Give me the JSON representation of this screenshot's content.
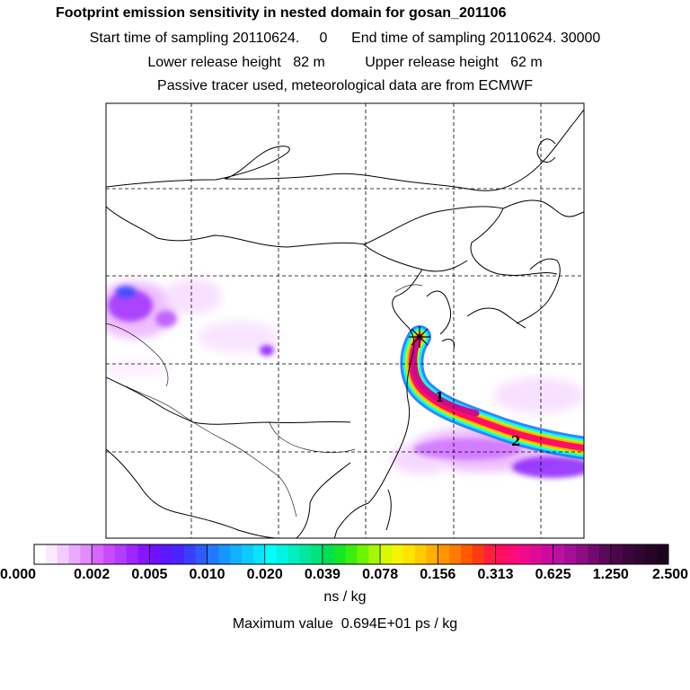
{
  "title": "Footprint emission sensitivity in nested domain for gosan_201106",
  "sampling_line": "Start time of sampling 20110624.     0      End time of sampling 20110624. 30000",
  "release_line": "Lower release height   82 m          Upper release height   62 m",
  "tracer_line": "Passive tracer used, meteorological data are from ECMWF",
  "map": {
    "release_site": "gosan",
    "track_labels": [
      "1",
      "2"
    ]
  },
  "colorbar": {
    "tick_labels": [
      "0.000",
      "0.002",
      "0.005",
      "0.010",
      "0.020",
      "0.039",
      "0.078",
      "0.156",
      "0.313",
      "0.625",
      "1.250",
      "2.500"
    ],
    "colors": [
      [
        "#ffffff",
        "#fae9ff",
        "#f3ccff",
        "#ebaaff",
        "#e38cff"
      ],
      [
        "#d766ff",
        "#c84bff",
        "#b43cff",
        "#9f26ff",
        "#8b14ff"
      ],
      [
        "#7010ff",
        "#5b17ff",
        "#4a25ff",
        "#3b3dff",
        "#2d5bff"
      ],
      [
        "#2079ff",
        "#1796ff",
        "#12b1ff",
        "#0ecaff",
        "#0ae3ff"
      ],
      [
        "#00ffff",
        "#00f5e0",
        "#00eec0",
        "#00e8a0",
        "#00e47c"
      ],
      [
        "#00e050",
        "#14e628",
        "#3aee12",
        "#6ef400",
        "#a6f800"
      ],
      [
        "#d8fa00",
        "#f5f500",
        "#ffe300",
        "#ffcb00",
        "#ffb000"
      ],
      [
        "#ff9500",
        "#ff7a00",
        "#ff5a00",
        "#ff3a14",
        "#ff1e3c"
      ],
      [
        "#ff0f5e",
        "#ff0a78",
        "#f20a8c",
        "#e00a98",
        "#cc0aa0"
      ],
      [
        "#bb10a4",
        "#a50e96",
        "#8c0d84",
        "#730a70",
        "#5a085a"
      ],
      [
        "#4a084a",
        "#3c063c",
        "#300530",
        "#260426",
        "#1e031e"
      ]
    ],
    "units": "ns / kg"
  },
  "max_value_line": "Maximum value  0.694E+01 ps / kg"
}
